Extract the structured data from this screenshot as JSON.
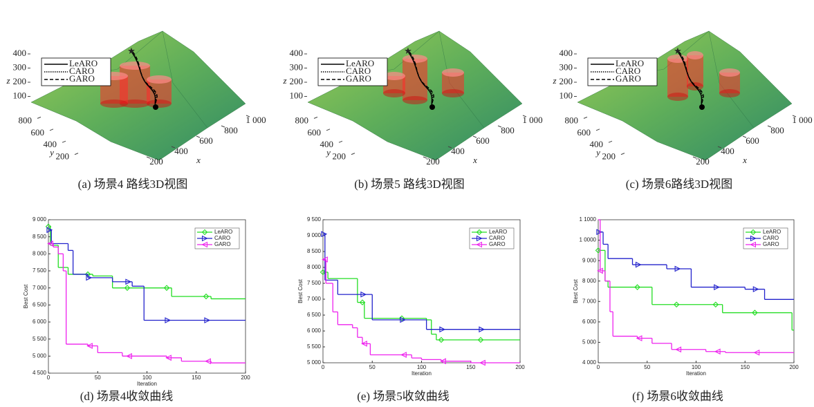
{
  "chart_data": [
    {
      "type": "path3d",
      "caption": "(a) 场景4 路线3D视图",
      "xlabel": "x",
      "ylabel": "y",
      "zlabel": "z",
      "xlim": [
        0,
        1000
      ],
      "ylim": [
        0,
        1000
      ],
      "zlim": [
        0,
        400
      ],
      "xticks": [
        200,
        400,
        600,
        800,
        {
          "value": 1000,
          "label": "1 000"
        }
      ],
      "yticks": [
        200,
        400,
        600,
        800
      ],
      "zticks": [
        100,
        200,
        300,
        400
      ],
      "series": [
        {
          "name": "LeARO",
          "dash": "solid"
        },
        {
          "name": "CARO",
          "dash": "dotted"
        },
        {
          "name": "GARO",
          "dash": "dashed"
        }
      ]
    },
    {
      "type": "path3d",
      "caption": "(b) 场景5 路线3D视图",
      "xlabel": "x",
      "ylabel": "y",
      "zlabel": "z",
      "xlim": [
        0,
        1000
      ],
      "ylim": [
        0,
        1000
      ],
      "zlim": [
        0,
        400
      ],
      "xticks": [
        200,
        400,
        600,
        800,
        {
          "value": 1000,
          "label": "1 000"
        }
      ],
      "yticks": [
        200,
        400,
        600,
        800
      ],
      "zticks": [
        100,
        200,
        300,
        400
      ],
      "series": [
        {
          "name": "LeARO",
          "dash": "solid"
        },
        {
          "name": "CARO",
          "dash": "dotted"
        },
        {
          "name": "GARO",
          "dash": "dashed"
        }
      ]
    },
    {
      "type": "path3d",
      "caption": "(c) 场景6路线3D视图",
      "xlabel": "x",
      "ylabel": "y",
      "zlabel": "z",
      "xlim": [
        0,
        1000
      ],
      "ylim": [
        0,
        1000
      ],
      "zlim": [
        0,
        400
      ],
      "xticks": [
        200,
        400,
        600,
        800,
        {
          "value": 1000,
          "label": "1 000"
        }
      ],
      "yticks": [
        200,
        400,
        600,
        800
      ],
      "zticks": [
        100,
        200,
        300,
        400
      ],
      "series": [
        {
          "name": "LeARO",
          "dash": "solid"
        },
        {
          "name": "CARO",
          "dash": "dotted"
        },
        {
          "name": "GARO",
          "dash": "dashed"
        }
      ]
    },
    {
      "type": "line",
      "caption": "(d) 场景4收敛曲线",
      "xlabel": "Iteration",
      "ylabel": "Best Cost",
      "xlim": [
        0,
        200
      ],
      "xticks": [
        0,
        50,
        100,
        150,
        200
      ],
      "ylim": [
        4500,
        9000
      ],
      "yticks": [
        {
          "value": 4500,
          "label": "4 500"
        },
        {
          "value": 5000,
          "label": "5 000"
        },
        {
          "value": 5500,
          "label": "5 500"
        },
        {
          "value": 6000,
          "label": "6 000"
        },
        {
          "value": 6500,
          "label": "6 500"
        },
        {
          "value": 7000,
          "label": "7 000"
        },
        {
          "value": 7500,
          "label": "7 500"
        },
        {
          "value": 8000,
          "label": "8 000"
        },
        {
          "value": 8500,
          "label": "8 500"
        },
        {
          "value": 9000,
          "label": "9 000"
        }
      ],
      "series": [
        {
          "name": "LeARO",
          "color": "#22dd22",
          "marker": "diamond",
          "x": [
            0,
            2,
            10,
            20,
            45,
            65,
            125,
            165,
            200
          ],
          "values": [
            8800,
            8250,
            7600,
            7400,
            7350,
            7000,
            6750,
            6680,
            6680
          ]
        },
        {
          "name": "CARO",
          "color": "#2222cc",
          "marker": "triangle-right",
          "x": [
            0,
            3,
            20,
            25,
            40,
            65,
            85,
            97,
            200
          ],
          "values": [
            8700,
            8300,
            8100,
            7400,
            7300,
            7180,
            7050,
            6050,
            6050
          ]
        },
        {
          "name": "GARO",
          "color": "#ee22ee",
          "marker": "triangle-left",
          "x": [
            0,
            5,
            10,
            15,
            18,
            40,
            50,
            75,
            120,
            135,
            165,
            200
          ],
          "values": [
            8300,
            8200,
            8000,
            7500,
            5350,
            5300,
            5100,
            5000,
            4950,
            4850,
            4800,
            4800
          ]
        }
      ]
    },
    {
      "type": "line",
      "caption": "(e) 场景5收敛曲线",
      "xlabel": "Iteration",
      "ylabel": "Best Cost",
      "xlim": [
        0,
        200
      ],
      "xticks": [
        0,
        50,
        100,
        150,
        200
      ],
      "ylim": [
        5000,
        9500
      ],
      "yticks": [
        {
          "value": 5000,
          "label": "5 000"
        },
        {
          "value": 5500,
          "label": "5 500"
        },
        {
          "value": 6000,
          "label": "6 000"
        },
        {
          "value": 6500,
          "label": "6 500"
        },
        {
          "value": 7000,
          "label": "7 000"
        },
        {
          "value": 7500,
          "label": "7 500"
        },
        {
          "value": 8000,
          "label": "8 000"
        },
        {
          "value": 8500,
          "label": "8 500"
        },
        {
          "value": 9000,
          "label": "9 000"
        },
        {
          "value": 9500,
          "label": "9 500"
        }
      ],
      "series": [
        {
          "name": "LeARO",
          "color": "#22dd22",
          "marker": "diamond",
          "x": [
            0,
            5,
            35,
            42,
            105,
            110,
            115,
            200
          ],
          "values": [
            7850,
            7650,
            6900,
            6400,
            6350,
            5900,
            5720,
            5720
          ]
        },
        {
          "name": "CARO",
          "color": "#2222cc",
          "marker": "triangle-right",
          "x": [
            0,
            2,
            15,
            50,
            105,
            200
          ],
          "values": [
            9050,
            7600,
            7150,
            6350,
            6050,
            6050
          ]
        },
        {
          "name": "GARO",
          "color": "#ee22ee",
          "marker": "triangle-left",
          "x": [
            0,
            3,
            10,
            15,
            30,
            35,
            40,
            48,
            90,
            100,
            120,
            150,
            200
          ],
          "values": [
            8250,
            7500,
            6600,
            6200,
            6100,
            5800,
            5600,
            5250,
            5150,
            5100,
            5050,
            5000,
            5000
          ]
        }
      ]
    },
    {
      "type": "line",
      "caption": "(f) 场景6收敛曲线",
      "xlabel": "Iteration",
      "ylabel": "Best Cost",
      "xlim": [
        0,
        200
      ],
      "xticks": [
        0,
        50,
        100,
        150,
        200
      ],
      "ylim": [
        4000,
        11000
      ],
      "yticks": [
        {
          "value": 4000,
          "label": "4 000"
        },
        {
          "value": 5000,
          "label": "5 000"
        },
        {
          "value": 6000,
          "label": "6 000"
        },
        {
          "value": 7000,
          "label": "7 000"
        },
        {
          "value": 8000,
          "label": "8 000"
        },
        {
          "value": 9000,
          "label": "9 000"
        },
        {
          "value": 10000,
          "label": "1 0000"
        },
        {
          "value": 11000,
          "label": "1 1000"
        }
      ],
      "series": [
        {
          "name": "LeARO",
          "color": "#22dd22",
          "marker": "diamond",
          "x": [
            0,
            7,
            10,
            55,
            127,
            198,
            200
          ],
          "values": [
            9500,
            8000,
            7700,
            6850,
            6450,
            5600,
            5600
          ]
        },
        {
          "name": "CARO",
          "color": "#2222cc",
          "marker": "triangle-right",
          "x": [
            0,
            5,
            10,
            35,
            70,
            95,
            150,
            170,
            200
          ],
          "values": [
            10400,
            9800,
            9100,
            8800,
            8600,
            7700,
            7600,
            7100,
            7100
          ]
        },
        {
          "name": "GARO",
          "color": "#ee22ee",
          "marker": "triangle-left",
          "x": [
            0,
            2,
            7,
            12,
            15,
            40,
            55,
            75,
            110,
            130,
            200
          ],
          "values": [
            11000,
            8500,
            8000,
            6500,
            5300,
            5200,
            4950,
            4650,
            4550,
            4500,
            4500
          ]
        }
      ]
    }
  ]
}
